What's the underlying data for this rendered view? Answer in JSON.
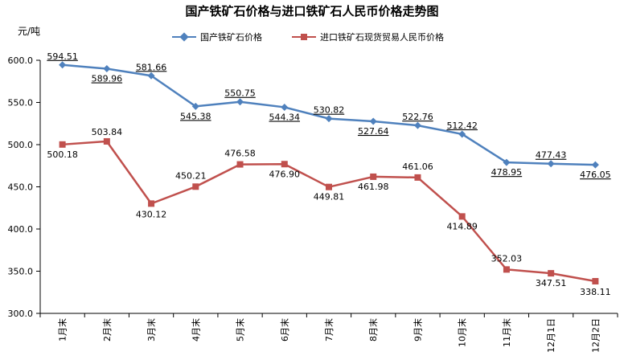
{
  "chart_data": {
    "type": "line",
    "title": "国产铁矿石价格与进口铁矿石人民币价格走势图",
    "ylabel": "元/吨",
    "xlabel": "",
    "ylim": [
      300,
      600
    ],
    "yticks": [
      "300.0",
      "350.0",
      "400.0",
      "450.0",
      "500.0",
      "550.0",
      "600.0"
    ],
    "grid": false,
    "legend": "top",
    "categories": [
      "1月末",
      "2月末",
      "3月末",
      "4月末",
      "5月末",
      "6月末",
      "7月末",
      "8月末",
      "9月末",
      "10月末",
      "11月末",
      "12月1日",
      "12月2日"
    ],
    "series": [
      {
        "name": "国产铁矿石价格",
        "color": "#4F81BD",
        "marker": "diamond",
        "values": [
          594.51,
          589.96,
          581.66,
          545.38,
          550.75,
          544.34,
          530.82,
          527.64,
          522.76,
          512.42,
          478.95,
          477.43,
          476.05
        ],
        "labels": [
          "594.51",
          "589.96",
          "581.66",
          "545.38",
          "550.75",
          "544.34",
          "530.82",
          "527.64",
          "522.76",
          "512.42",
          "478.95",
          "477.43",
          "476.05"
        ]
      },
      {
        "name": "进口铁矿石现货贸易人民币价格",
        "color": "#C0504D",
        "marker": "square",
        "values": [
          500.18,
          503.84,
          430.12,
          450.21,
          476.58,
          476.9,
          449.81,
          461.98,
          461.06,
          414.89,
          352.03,
          347.51,
          338.11
        ],
        "labels": [
          "500.18",
          "503.84",
          "430.12",
          "450.21",
          "476.58",
          "476.90",
          "449.81",
          "461.98",
          "461.06",
          "414.89",
          "352.03",
          "347.51",
          "338.11"
        ]
      }
    ]
  }
}
